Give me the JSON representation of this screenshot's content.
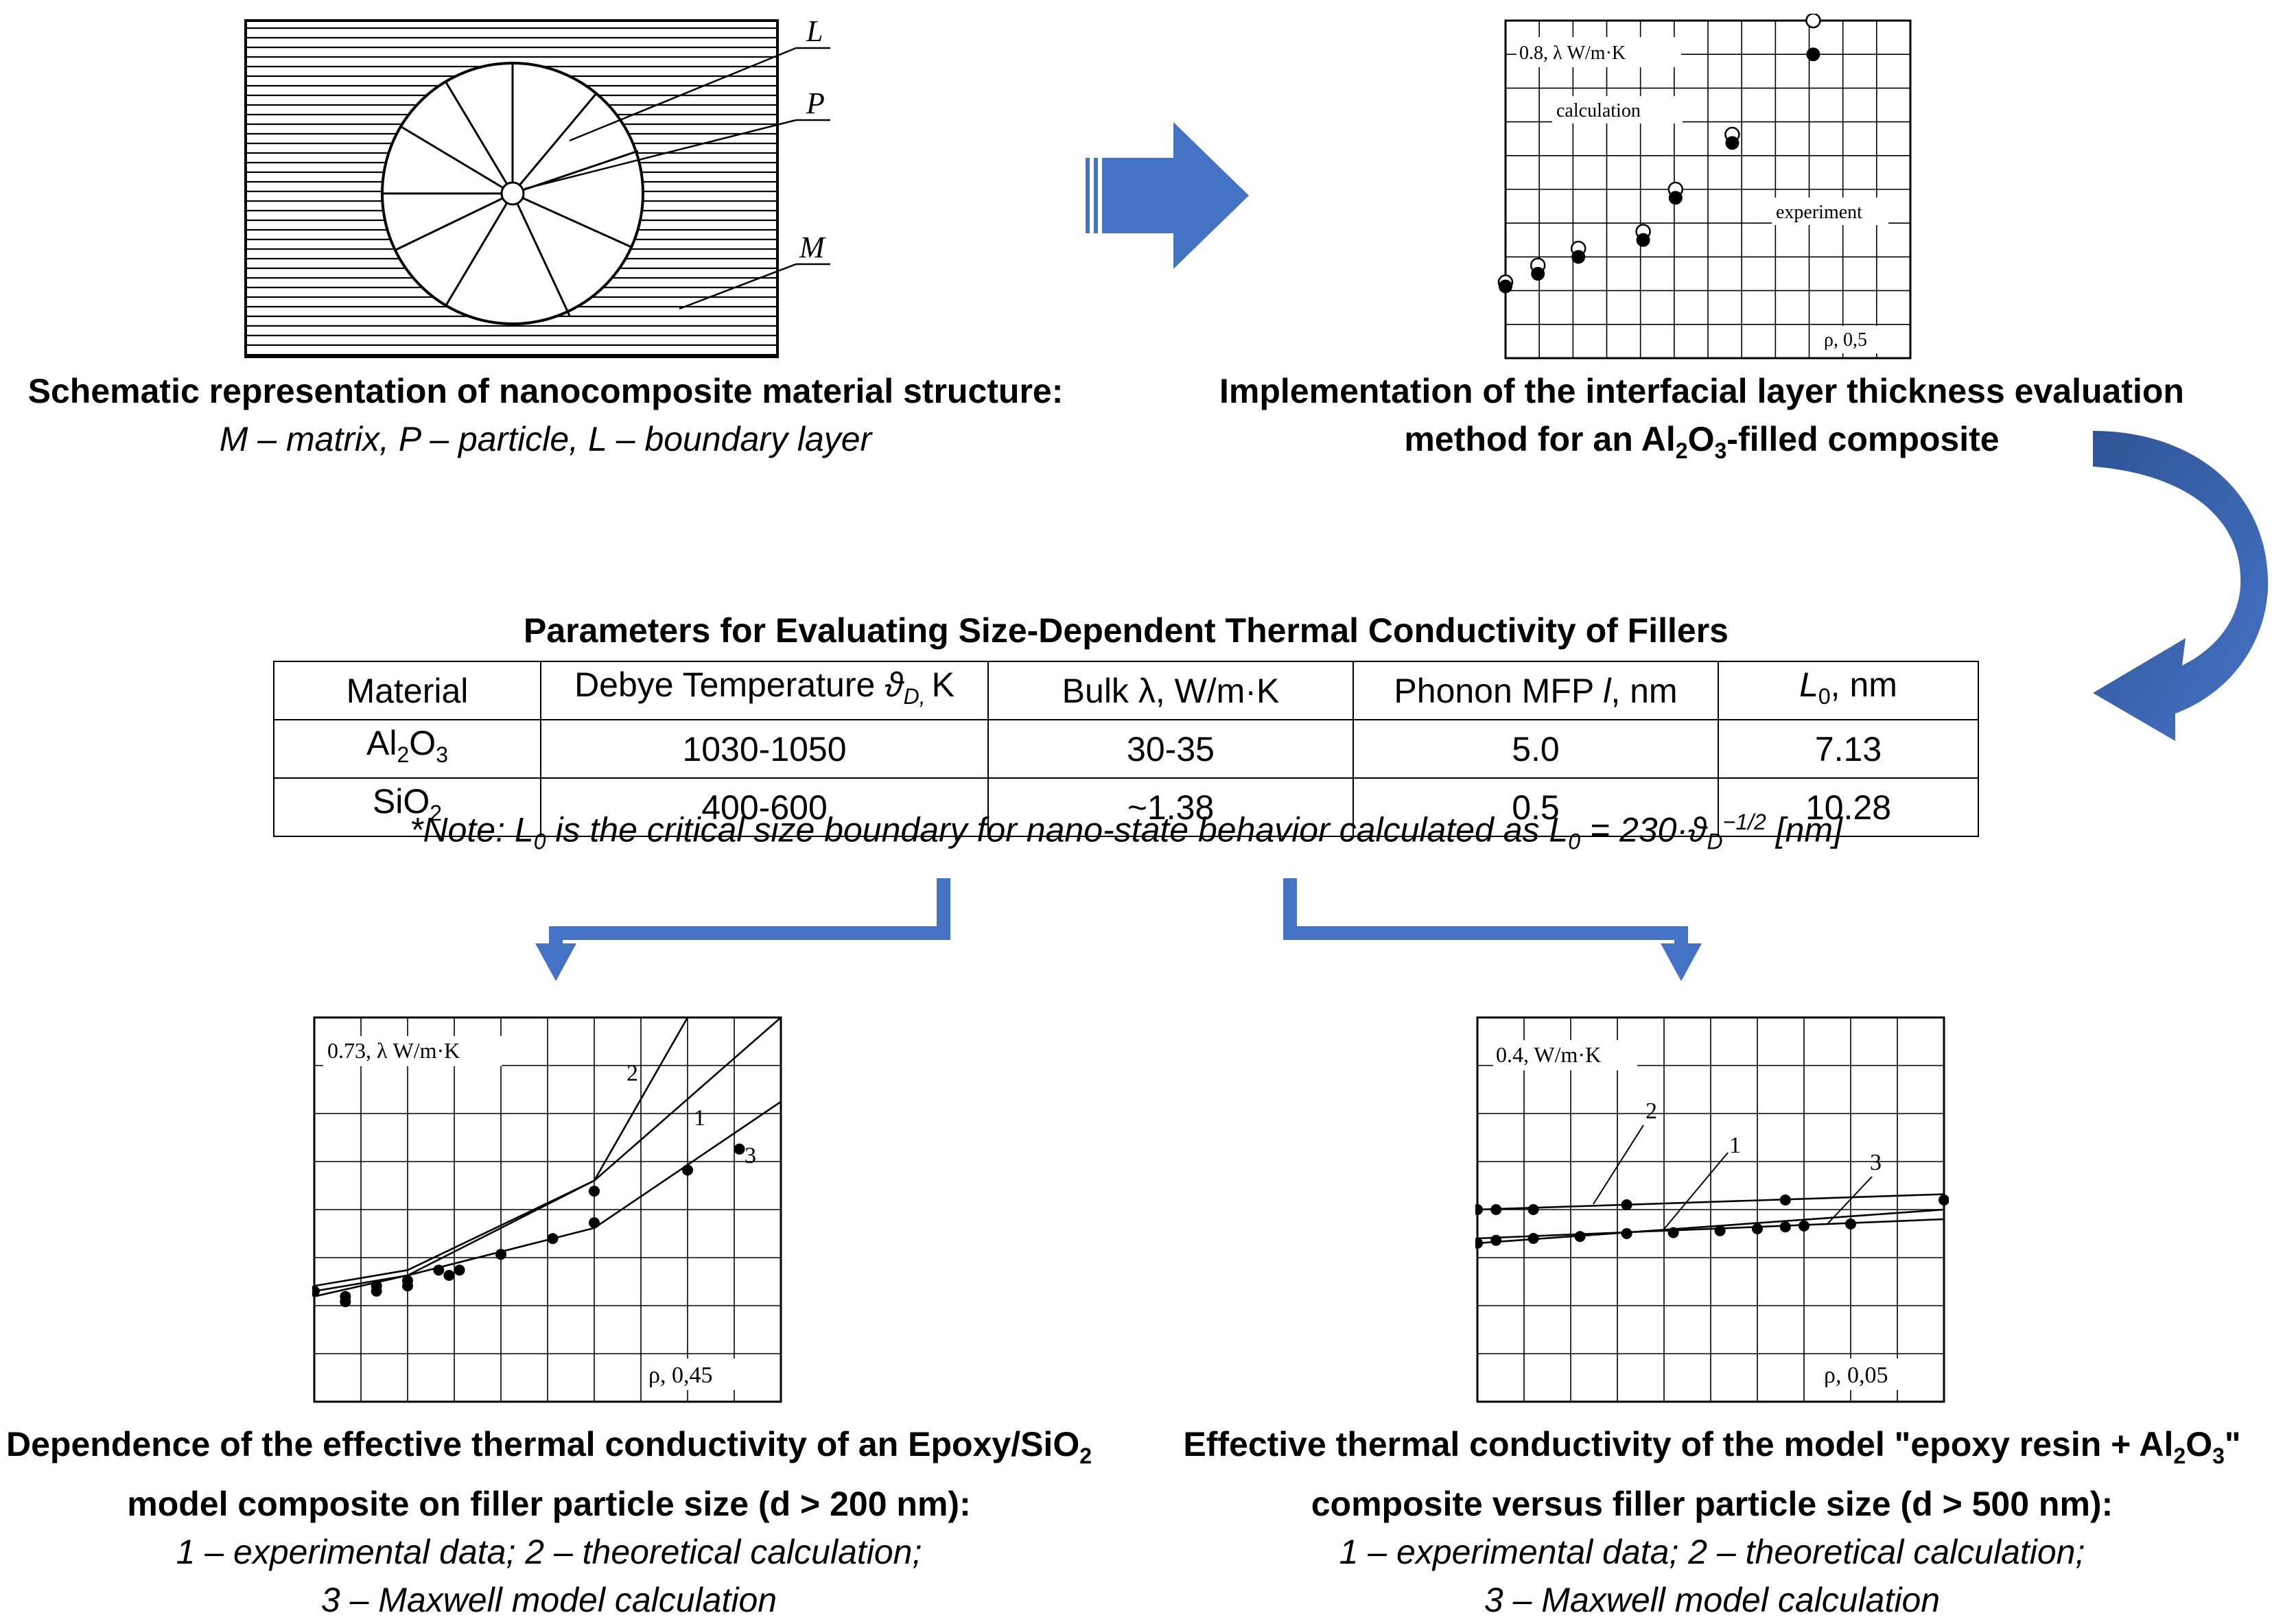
{
  "schematic": {
    "labels": {
      "L": "L",
      "P": "P",
      "M": "M"
    },
    "caption_bold": "Schematic representation of nanocomposite material structure:",
    "caption_italic": "M – matrix, P – particle, L – boundary layer"
  },
  "colors": {
    "accent": "#4472C4",
    "arrow_dark": "#2F5597",
    "text": "#000000"
  },
  "top_chart": {
    "ylabel": "0.8, λ W/m·K",
    "xlabel": "ρ,  0,5",
    "labels": {
      "calculation": "calculation",
      "experiment": "experiment"
    },
    "caption_line1": "Implementation of the interfacial layer thickness evaluation",
    "caption_line2_pre": "method for an Al",
    "caption_line2_sub1": "2",
    "caption_line2_mid": "O",
    "caption_line2_sub2": "3",
    "caption_line2_post": "-filled composite"
  },
  "chart_data": [
    {
      "type": "scatter",
      "xlabel": "ρ,  0,5",
      "ylabel": "0.8, λ W/m·K",
      "xlim": [
        0,
        0.5
      ],
      "ylim": [
        0,
        0.8
      ],
      "grid": true,
      "series": [
        {
          "name": "calculation",
          "marker": "open-circle",
          "x": [
            0.0,
            0.04,
            0.09,
            0.17,
            0.21,
            0.28,
            0.38
          ],
          "y": [
            0.18,
            0.22,
            0.26,
            0.3,
            0.4,
            0.53,
            0.8
          ]
        },
        {
          "name": "experiment",
          "marker": "filled-circle",
          "x": [
            0.0,
            0.04,
            0.09,
            0.17,
            0.21,
            0.28,
            0.38
          ],
          "y": [
            0.17,
            0.2,
            0.24,
            0.28,
            0.38,
            0.51,
            0.72
          ]
        }
      ]
    },
    {
      "type": "line",
      "xlabel": "ρ,  0,45",
      "ylabel": "0.73, λ W/m·K",
      "xlim": [
        0,
        0.45
      ],
      "ylim": [
        0,
        0.73
      ],
      "grid": true,
      "series": [
        {
          "name": "1",
          "x": [
            0.0,
            0.09,
            0.27,
            0.45
          ],
          "y": [
            0.22,
            0.25,
            0.42,
            0.73
          ]
        },
        {
          "name": "2",
          "x": [
            0.0,
            0.09,
            0.27,
            0.36
          ],
          "y": [
            0.21,
            0.24,
            0.42,
            0.73
          ]
        },
        {
          "name": "3",
          "x": [
            0.0,
            0.09,
            0.27,
            0.45
          ],
          "y": [
            0.2,
            0.24,
            0.33,
            0.57
          ]
        }
      ],
      "points": {
        "x": [
          0.0,
          0.03,
          0.03,
          0.06,
          0.06,
          0.09,
          0.09,
          0.12,
          0.13,
          0.14,
          0.18,
          0.23,
          0.27,
          0.27,
          0.36,
          0.41
        ],
        "y": [
          0.21,
          0.19,
          0.2,
          0.21,
          0.22,
          0.23,
          0.22,
          0.25,
          0.24,
          0.25,
          0.28,
          0.31,
          0.34,
          0.4,
          0.44,
          0.48
        ]
      }
    },
    {
      "type": "line",
      "xlabel": "ρ,  0,05",
      "ylabel": "0.4, W/m·K",
      "xlim": [
        0,
        0.05
      ],
      "ylim": [
        0,
        0.4
      ],
      "grid": true,
      "series": [
        {
          "name": "2",
          "x": [
            0.0,
            0.05
          ],
          "y": [
            0.2,
            0.216
          ]
        },
        {
          "name": "1",
          "x": [
            0.0,
            0.05
          ],
          "y": [
            0.165,
            0.2
          ]
        },
        {
          "name": "3",
          "x": [
            0.0,
            0.05
          ],
          "y": [
            0.17,
            0.19
          ]
        }
      ],
      "points": {
        "x": [
          0.0,
          0.002,
          0.006,
          0.016,
          0.033,
          0.05,
          0.0,
          0.002,
          0.006,
          0.011,
          0.016,
          0.021,
          0.026,
          0.03,
          0.033,
          0.035,
          0.04
        ],
        "y": [
          0.2,
          0.2,
          0.2,
          0.205,
          0.21,
          0.21,
          0.165,
          0.168,
          0.17,
          0.172,
          0.175,
          0.176,
          0.178,
          0.18,
          0.182,
          0.183,
          0.185
        ]
      }
    }
  ],
  "table": {
    "title": "Parameters for Evaluating Size-Dependent Thermal Conductivity of Fillers",
    "headers": {
      "material": "Material",
      "debye_pre": "Debye Temperature ",
      "debye_sym": "ϑ",
      "debye_sub": "D, ",
      "debye_post": "K",
      "bulk": "Bulk λ, W/m·K",
      "mfp_pre": "Phonon MFP ",
      "mfp_sym": "l",
      "mfp_post": ", nm",
      "l0_sym": "L",
      "l0_sub": "0",
      "l0_post": ", nm"
    },
    "rows": [
      {
        "mat_a": "Al",
        "mat_sub1": "2",
        "mat_b": "O",
        "mat_sub2": "3",
        "debye": "1030-1050",
        "bulk": "30-35",
        "mfp": "5.0",
        "l0": "7.13"
      },
      {
        "mat_a": "SiO",
        "mat_sub1": "2",
        "mat_b": "",
        "mat_sub2": "",
        "debye": "400-600",
        "bulk": "~1.38",
        "mfp": "0.5",
        "l0": "10.28"
      }
    ],
    "note_pre": "*Note: L",
    "note_sub1": "0",
    "note_mid": " is the critical size boundary for nano-state behavior calculated as L",
    "note_sub2": "0",
    "note_eq": " = 230·ϑ",
    "note_sub3": "D",
    "note_sup": "−1/2",
    "note_post": " [nm]"
  },
  "left_chart": {
    "ylabel": "0.73, λ W/m·K",
    "xlabel": "ρ,  0,45",
    "curve_labels": {
      "c1": "1",
      "c2": "2",
      "c3": "3"
    },
    "caption_line1_pre": "Dependence of the effective thermal conductivity of an Epoxy/SiO",
    "caption_line1_sub": "2",
    "caption_line2": "model composite on filler particle size (d > 200 nm):",
    "caption_line3": "1 – experimental data; 2 – theoretical calculation;",
    "caption_line4": "3 – Maxwell model calculation"
  },
  "right_chart": {
    "ylabel": "0.4, W/m·K",
    "xlabel": "ρ,  0,05",
    "curve_labels": {
      "c1": "1",
      "c2": "2",
      "c3": "3"
    },
    "caption_line1_pre": "Effective thermal conductivity of the model \"epoxy resin + Al",
    "caption_line1_sub1": "2",
    "caption_line1_mid": "O",
    "caption_line1_sub2": "3",
    "caption_line1_post": "\"",
    "caption_line2": "composite versus filler particle size (d > 500 nm):",
    "caption_line3": "1 – experimental data; 2 – theoretical calculation;",
    "caption_line4": "3 – Maxwell model calculation"
  }
}
